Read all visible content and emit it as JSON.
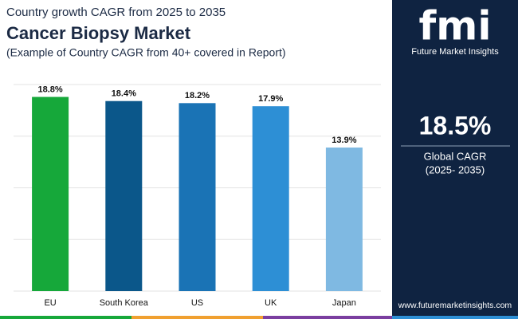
{
  "chart_data": {
    "type": "bar",
    "pretitle": "Country growth CAGR from 2025 to 2035",
    "title": "Cancer Biopsy Market",
    "subtitle": "(Example of Country CAGR from 40+ covered in Report)",
    "categories": [
      "EU",
      "South Korea",
      "US",
      "UK",
      "Japan"
    ],
    "values": [
      18.8,
      18.4,
      18.2,
      17.9,
      13.9
    ],
    "value_labels": [
      "18.8%",
      "18.4%",
      "18.2%",
      "17.9%",
      "13.9%"
    ],
    "colors": [
      "#16a83a",
      "#0b578a",
      "#1a73b5",
      "#2d8fd5",
      "#7fb9e2"
    ],
    "ylim": [
      0,
      20
    ],
    "yticks": [
      0,
      5,
      10,
      15,
      20
    ],
    "grid": true
  },
  "brand": {
    "logo": "fmi",
    "name": "Future Market Insights"
  },
  "highlight": {
    "value": "18.5%",
    "label": "Global CAGR",
    "period": "(2025- 2035)"
  },
  "footer": {
    "url": "www.futuremarketinsights.com"
  }
}
